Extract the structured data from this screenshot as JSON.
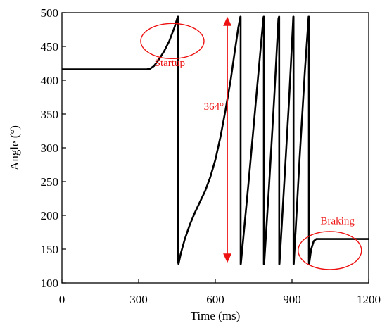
{
  "chart_data": {
    "type": "line",
    "xlabel": "Time (ms)",
    "ylabel": "Angle (°)",
    "xlim": [
      0,
      1200
    ],
    "ylim": [
      100,
      500
    ],
    "xticks": [
      0,
      300,
      600,
      900,
      1200
    ],
    "yticks": [
      100,
      150,
      200,
      250,
      300,
      350,
      400,
      450,
      500
    ],
    "grid": false,
    "series": [
      {
        "color": "#000000",
        "points": [
          [
            0,
            416
          ],
          [
            330,
            416
          ],
          [
            345,
            417
          ],
          [
            360,
            421
          ],
          [
            380,
            431
          ],
          [
            400,
            443
          ],
          [
            420,
            458
          ],
          [
            440,
            478
          ],
          [
            453,
            494
          ],
          [
            455,
            494
          ],
          [
            455,
            130
          ],
          [
            456,
            128
          ],
          [
            465,
            144
          ],
          [
            480,
            164
          ],
          [
            500,
            186
          ],
          [
            520,
            204
          ],
          [
            540,
            220
          ],
          [
            560,
            236
          ],
          [
            580,
            256
          ],
          [
            600,
            282
          ],
          [
            620,
            316
          ],
          [
            640,
            356
          ],
          [
            660,
            400
          ],
          [
            675,
            440
          ],
          [
            690,
            478
          ],
          [
            698,
            494
          ],
          [
            699,
            494
          ],
          [
            699,
            128
          ],
          [
            700,
            128
          ],
          [
            730,
            248
          ],
          [
            760,
            374
          ],
          [
            788,
            492
          ],
          [
            789,
            494
          ],
          [
            790,
            494
          ],
          [
            790,
            128
          ],
          [
            791,
            128
          ],
          [
            810,
            242
          ],
          [
            830,
            372
          ],
          [
            847,
            491
          ],
          [
            849,
            494
          ],
          [
            850,
            494
          ],
          [
            850,
            128
          ],
          [
            851,
            128
          ],
          [
            870,
            250
          ],
          [
            888,
            366
          ],
          [
            903,
            478
          ],
          [
            905,
            494
          ],
          [
            906,
            494
          ],
          [
            906,
            128
          ],
          [
            907,
            128
          ],
          [
            930,
            286
          ],
          [
            950,
            412
          ],
          [
            965,
            494
          ],
          [
            966,
            494
          ],
          [
            966,
            132
          ],
          [
            967,
            128
          ],
          [
            975,
            150
          ],
          [
            985,
            162
          ],
          [
            995,
            165
          ],
          [
            1010,
            165
          ],
          [
            1200,
            165
          ]
        ]
      }
    ],
    "annotations": {
      "color": "#ee1111",
      "startup": {
        "label": "Startup",
        "ellipse_center": [
          432,
          458
        ],
        "ellipse_radius": [
          45,
          25
        ]
      },
      "braking": {
        "label": "Braking",
        "ellipse_center": [
          1048,
          148
        ],
        "ellipse_radius": [
          45,
          27
        ]
      },
      "span": {
        "label": "364°",
        "from": 130,
        "to": 494,
        "x": 647
      }
    }
  }
}
